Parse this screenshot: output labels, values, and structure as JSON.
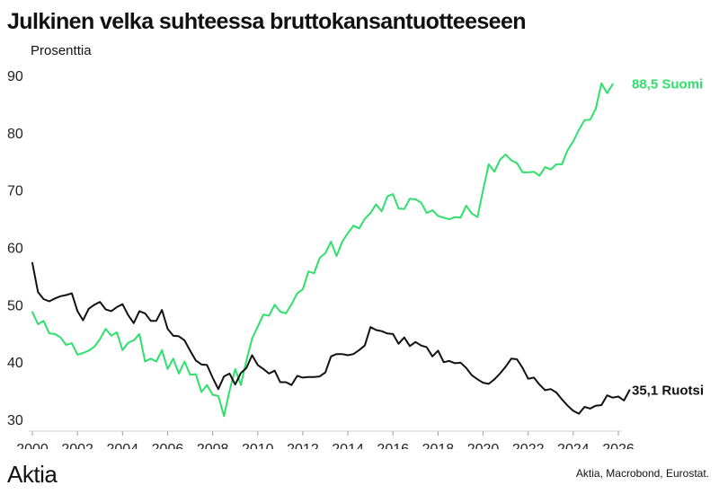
{
  "chart_data": {
    "type": "line",
    "title": "Julkinen velka suhteessa bruttokansantuotteeseen",
    "ylabel": "Prosenttia",
    "xlim": [
      2000,
      2026
    ],
    "ylim": [
      30,
      90
    ],
    "x_ticks": [
      "2000",
      "2002",
      "2004",
      "2006",
      "2008",
      "2010",
      "2012",
      "2014",
      "2016",
      "2018",
      "2020",
      "2022",
      "2024",
      "2026"
    ],
    "y_ticks": [
      "30",
      "40",
      "50",
      "60",
      "70",
      "80",
      "90"
    ],
    "grid": false,
    "series": [
      {
        "name": "Suomi",
        "color": "#2ee06c",
        "end_label": "88,5 Suomi",
        "points": [
          [
            2000.0,
            48.7
          ],
          [
            2000.25,
            46.6
          ],
          [
            2000.5,
            47.2
          ],
          [
            2000.75,
            45.0
          ],
          [
            2001.0,
            44.9
          ],
          [
            2001.25,
            44.3
          ],
          [
            2001.5,
            43.0
          ],
          [
            2001.75,
            43.3
          ],
          [
            2002.0,
            41.3
          ],
          [
            2002.25,
            41.6
          ],
          [
            2002.5,
            42.0
          ],
          [
            2002.75,
            42.7
          ],
          [
            2003.0,
            44.0
          ],
          [
            2003.25,
            45.8
          ],
          [
            2003.5,
            44.6
          ],
          [
            2003.75,
            45.2
          ],
          [
            2004.0,
            42.1
          ],
          [
            2004.25,
            43.4
          ],
          [
            2004.5,
            43.8
          ],
          [
            2004.75,
            44.9
          ],
          [
            2005.0,
            40.1
          ],
          [
            2005.25,
            40.6
          ],
          [
            2005.5,
            40.1
          ],
          [
            2005.75,
            42.1
          ],
          [
            2006.0,
            38.8
          ],
          [
            2006.25,
            40.6
          ],
          [
            2006.5,
            38.0
          ],
          [
            2006.75,
            40.1
          ],
          [
            2007.0,
            37.8
          ],
          [
            2007.25,
            37.9
          ],
          [
            2007.5,
            34.8
          ],
          [
            2007.75,
            36.0
          ],
          [
            2008.0,
            34.3
          ],
          [
            2008.25,
            34.1
          ],
          [
            2008.5,
            30.6
          ],
          [
            2008.75,
            35.0
          ],
          [
            2009.0,
            38.8
          ],
          [
            2009.25,
            36.0
          ],
          [
            2009.5,
            40.3
          ],
          [
            2009.75,
            44.1
          ],
          [
            2010.0,
            46.2
          ],
          [
            2010.25,
            48.3
          ],
          [
            2010.5,
            48.1
          ],
          [
            2010.75,
            50.0
          ],
          [
            2011.0,
            48.8
          ],
          [
            2011.25,
            48.5
          ],
          [
            2011.5,
            50.1
          ],
          [
            2011.75,
            52.0
          ],
          [
            2012.0,
            52.7
          ],
          [
            2012.25,
            55.8
          ],
          [
            2012.5,
            55.5
          ],
          [
            2012.75,
            58.2
          ],
          [
            2013.0,
            59.0
          ],
          [
            2013.25,
            61.0
          ],
          [
            2013.5,
            58.5
          ],
          [
            2013.75,
            61.0
          ],
          [
            2014.0,
            62.5
          ],
          [
            2014.25,
            63.8
          ],
          [
            2014.5,
            63.3
          ],
          [
            2014.75,
            65.0
          ],
          [
            2015.0,
            66.0
          ],
          [
            2015.25,
            67.5
          ],
          [
            2015.5,
            66.3
          ],
          [
            2015.75,
            68.9
          ],
          [
            2016.0,
            69.3
          ],
          [
            2016.25,
            66.8
          ],
          [
            2016.5,
            66.7
          ],
          [
            2016.75,
            68.5
          ],
          [
            2017.0,
            68.4
          ],
          [
            2017.25,
            67.8
          ],
          [
            2017.5,
            66.0
          ],
          [
            2017.75,
            66.5
          ],
          [
            2018.0,
            65.5
          ],
          [
            2018.25,
            65.2
          ],
          [
            2018.5,
            64.9
          ],
          [
            2018.75,
            65.3
          ],
          [
            2019.0,
            65.2
          ],
          [
            2019.25,
            67.3
          ],
          [
            2019.5,
            65.9
          ],
          [
            2019.75,
            65.3
          ],
          [
            2020.0,
            70.0
          ],
          [
            2020.25,
            74.5
          ],
          [
            2020.5,
            73.2
          ],
          [
            2020.75,
            75.3
          ],
          [
            2021.0,
            76.2
          ],
          [
            2021.25,
            75.2
          ],
          [
            2021.5,
            74.7
          ],
          [
            2021.75,
            73.1
          ],
          [
            2022.0,
            73.1
          ],
          [
            2022.25,
            73.2
          ],
          [
            2022.5,
            72.5
          ],
          [
            2022.75,
            74.0
          ],
          [
            2023.0,
            73.6
          ],
          [
            2023.25,
            74.5
          ],
          [
            2023.5,
            74.5
          ],
          [
            2023.75,
            77.0
          ],
          [
            2024.0,
            78.5
          ],
          [
            2024.25,
            80.5
          ],
          [
            2024.5,
            82.2
          ],
          [
            2024.75,
            82.3
          ],
          [
            2025.0,
            84.2
          ],
          [
            2025.25,
            88.6
          ],
          [
            2025.5,
            86.9
          ],
          [
            2025.75,
            88.5
          ]
        ]
      },
      {
        "name": "Ruotsi",
        "color": "#111111",
        "end_label": "35,1 Ruotsi",
        "points": [
          [
            2000.0,
            57.3
          ],
          [
            2000.25,
            52.2
          ],
          [
            2000.5,
            51.0
          ],
          [
            2000.75,
            50.6
          ],
          [
            2001.0,
            51.1
          ],
          [
            2001.25,
            51.5
          ],
          [
            2001.5,
            51.7
          ],
          [
            2001.75,
            52.0
          ],
          [
            2002.0,
            48.9
          ],
          [
            2002.25,
            47.3
          ],
          [
            2002.5,
            49.3
          ],
          [
            2002.75,
            50.0
          ],
          [
            2003.0,
            50.5
          ],
          [
            2003.25,
            49.2
          ],
          [
            2003.5,
            48.9
          ],
          [
            2003.75,
            49.6
          ],
          [
            2004.0,
            50.1
          ],
          [
            2004.25,
            48.2
          ],
          [
            2004.5,
            46.8
          ],
          [
            2004.75,
            48.9
          ],
          [
            2005.0,
            48.5
          ],
          [
            2005.25,
            47.2
          ],
          [
            2005.5,
            47.2
          ],
          [
            2005.75,
            49.1
          ],
          [
            2006.0,
            45.8
          ],
          [
            2006.25,
            44.6
          ],
          [
            2006.5,
            44.5
          ],
          [
            2006.75,
            43.8
          ],
          [
            2007.0,
            42.0
          ],
          [
            2007.25,
            40.3
          ],
          [
            2007.5,
            39.6
          ],
          [
            2007.75,
            39.5
          ],
          [
            2008.0,
            37.3
          ],
          [
            2008.25,
            35.3
          ],
          [
            2008.5,
            37.5
          ],
          [
            2008.75,
            38.0
          ],
          [
            2009.0,
            36.1
          ],
          [
            2009.25,
            38.1
          ],
          [
            2009.5,
            39.0
          ],
          [
            2009.75,
            41.2
          ],
          [
            2010.0,
            39.5
          ],
          [
            2010.25,
            38.8
          ],
          [
            2010.5,
            38.0
          ],
          [
            2010.75,
            38.5
          ],
          [
            2011.0,
            36.5
          ],
          [
            2011.25,
            36.5
          ],
          [
            2011.5,
            36.0
          ],
          [
            2011.75,
            37.6
          ],
          [
            2012.0,
            37.3
          ],
          [
            2012.25,
            37.4
          ],
          [
            2012.5,
            37.4
          ],
          [
            2012.75,
            37.5
          ],
          [
            2013.0,
            38.2
          ],
          [
            2013.25,
            41.0
          ],
          [
            2013.5,
            41.4
          ],
          [
            2013.75,
            41.4
          ],
          [
            2014.0,
            41.2
          ],
          [
            2014.25,
            41.4
          ],
          [
            2014.5,
            42.1
          ],
          [
            2014.75,
            42.9
          ],
          [
            2015.0,
            46.1
          ],
          [
            2015.25,
            45.6
          ],
          [
            2015.5,
            45.4
          ],
          [
            2015.75,
            45.0
          ],
          [
            2016.0,
            44.9
          ],
          [
            2016.25,
            43.2
          ],
          [
            2016.5,
            44.3
          ],
          [
            2016.75,
            42.8
          ],
          [
            2017.0,
            43.5
          ],
          [
            2017.25,
            42.9
          ],
          [
            2017.5,
            42.6
          ],
          [
            2017.75,
            41.0
          ],
          [
            2018.0,
            42.0
          ],
          [
            2018.25,
            40.0
          ],
          [
            2018.5,
            40.2
          ],
          [
            2018.75,
            39.8
          ],
          [
            2019.0,
            39.9
          ],
          [
            2019.25,
            39.0
          ],
          [
            2019.5,
            37.7
          ],
          [
            2019.75,
            37.0
          ],
          [
            2020.0,
            36.4
          ],
          [
            2020.25,
            36.2
          ],
          [
            2020.5,
            37.0
          ],
          [
            2020.75,
            38.0
          ],
          [
            2021.0,
            39.2
          ],
          [
            2021.25,
            40.6
          ],
          [
            2021.5,
            40.5
          ],
          [
            2021.75,
            39.0
          ],
          [
            2022.0,
            37.1
          ],
          [
            2022.25,
            37.3
          ],
          [
            2022.5,
            36.1
          ],
          [
            2022.75,
            35.1
          ],
          [
            2023.0,
            35.3
          ],
          [
            2023.25,
            34.7
          ],
          [
            2023.5,
            33.5
          ],
          [
            2023.75,
            32.4
          ],
          [
            2024.0,
            31.5
          ],
          [
            2024.25,
            31.0
          ],
          [
            2024.5,
            32.2
          ],
          [
            2024.75,
            31.9
          ],
          [
            2025.0,
            32.4
          ],
          [
            2025.25,
            32.5
          ],
          [
            2025.5,
            34.2
          ],
          [
            2025.75,
            33.8
          ],
          [
            2026.0,
            34.0
          ],
          [
            2026.25,
            33.3
          ],
          [
            2026.5,
            35.1
          ]
        ]
      }
    ]
  },
  "logo_text": "Aktia",
  "source": "Aktia, Macrobond, Eurostat."
}
